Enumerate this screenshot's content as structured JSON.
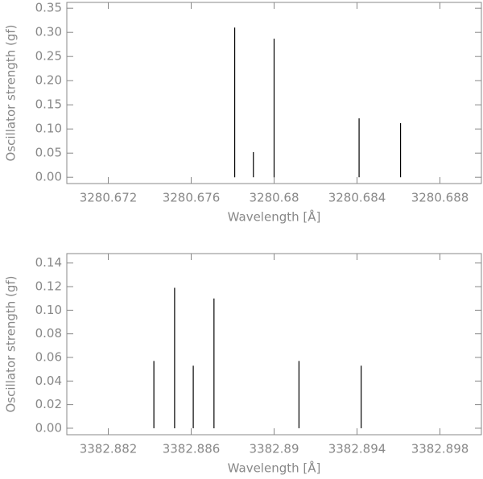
{
  "chart_data": [
    {
      "type": "stick",
      "x_label": "Wavelength [Å]",
      "y_label": "Oscillator strength (gf)",
      "x": [
        3280.6781,
        3280.679,
        3280.68,
        3280.6841,
        3280.6861
      ],
      "values": [
        0.31,
        0.052,
        0.287,
        0.122,
        0.112
      ],
      "color": "#000000",
      "xlim": [
        3280.67,
        3280.69
      ],
      "xticks": [
        3280.672,
        3280.676,
        3280.68,
        3280.684,
        3280.688
      ],
      "ylim": [
        -0.013,
        0.362
      ],
      "yticks": [
        {
          "value": 0,
          "label": "0.00"
        },
        {
          "value": 0.05,
          "label": "0.05"
        },
        {
          "value": 0.1,
          "label": "0.10"
        },
        {
          "value": 0.15,
          "label": "0.15"
        },
        {
          "value": 0.2,
          "label": "0.20"
        },
        {
          "value": 0.25,
          "label": "0.25"
        },
        {
          "value": 0.3,
          "label": "0.30"
        },
        {
          "value": 0.35,
          "label": "0.35"
        }
      ]
    },
    {
      "type": "stick",
      "x_label": "Wavelength [Å]",
      "y_label": "Oscillator strength (gf)",
      "x": [
        3382.8842,
        3382.8852,
        3382.8861,
        3382.8871,
        3382.8912,
        3382.8942
      ],
      "values": [
        0.057,
        0.119,
        0.053,
        0.11,
        0.057,
        0.053
      ],
      "color": "#000000",
      "xlim": [
        3382.88,
        3382.9
      ],
      "xticks": [
        3382.882,
        3382.886,
        3382.89,
        3382.894,
        3382.898
      ],
      "ylim": [
        -0.0055,
        0.148
      ],
      "yticks": [
        {
          "value": 0,
          "label": "0.00"
        },
        {
          "value": 0.02,
          "label": "0.02"
        },
        {
          "value": 0.04,
          "label": "0.04"
        },
        {
          "value": 0.06,
          "label": "0.06"
        },
        {
          "value": 0.08,
          "label": "0.08"
        },
        {
          "value": 0.1,
          "label": "0.10"
        },
        {
          "value": 0.12,
          "label": "0.12"
        },
        {
          "value": 0.14,
          "label": "0.14"
        }
      ]
    }
  ]
}
